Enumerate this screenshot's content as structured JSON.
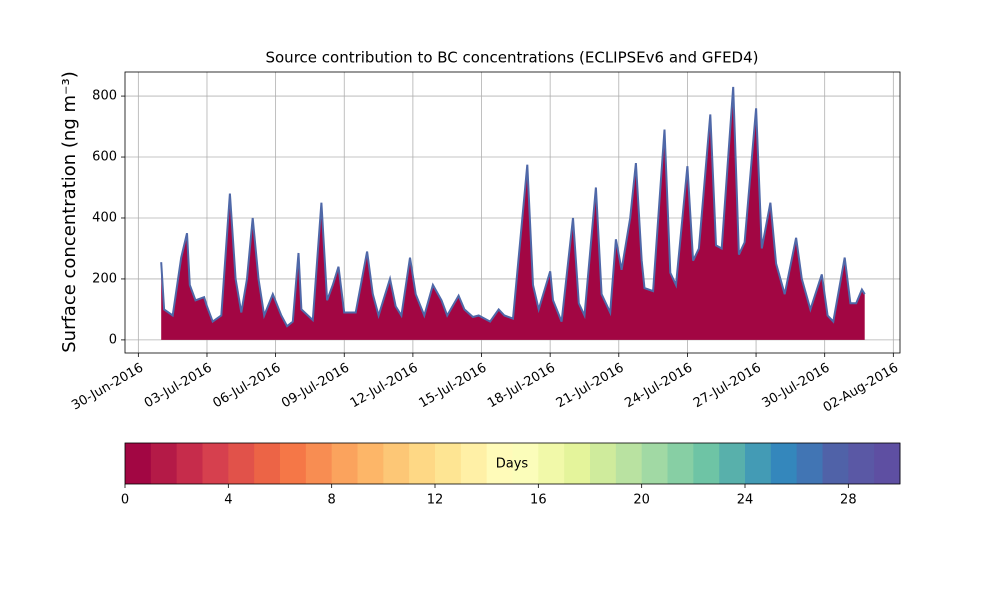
{
  "chart_data": {
    "type": "area",
    "title": "Source contribution to BC concentrations (ECLIPSEv6 and GFED4)",
    "ylabel": "Surface concentration (ng m⁻³)",
    "x": [
      "2016-07-01T00:00",
      "2016-07-01T03:00",
      "2016-07-01T12:00",
      "2016-07-01T21:00",
      "2016-07-02T03:00",
      "2016-07-02T06:00",
      "2016-07-02T12:00",
      "2016-07-02T21:00",
      "2016-07-03T00:00",
      "2016-07-03T06:00",
      "2016-07-03T15:00",
      "2016-07-04T00:00",
      "2016-07-04T06:00",
      "2016-07-04T12:00",
      "2016-07-04T18:00",
      "2016-07-05T00:00",
      "2016-07-05T06:00",
      "2016-07-05T12:00",
      "2016-07-05T21:00",
      "2016-07-06T06:00",
      "2016-07-06T12:00",
      "2016-07-06T18:00",
      "2016-07-07T00:00",
      "2016-07-07T03:00",
      "2016-07-07T15:00",
      "2016-07-08T00:00",
      "2016-07-08T06:00",
      "2016-07-08T12:00",
      "2016-07-08T18:00",
      "2016-07-09T00:00",
      "2016-07-09T12:00",
      "2016-07-10T00:00",
      "2016-07-10T06:00",
      "2016-07-10T12:00",
      "2016-07-11T00:00",
      "2016-07-11T06:00",
      "2016-07-11T12:00",
      "2016-07-11T21:00",
      "2016-07-12T03:00",
      "2016-07-12T12:00",
      "2016-07-12T21:00",
      "2016-07-13T06:00",
      "2016-07-13T12:00",
      "2016-07-14T00:00",
      "2016-07-14T06:00",
      "2016-07-14T15:00",
      "2016-07-14T21:00",
      "2016-07-15T09:00",
      "2016-07-15T18:00",
      "2016-07-16T00:00",
      "2016-07-16T09:00",
      "2016-07-17T00:00",
      "2016-07-17T06:00",
      "2016-07-17T12:00",
      "2016-07-18T00:00",
      "2016-07-18T03:00",
      "2016-07-18T12:00",
      "2016-07-19T00:00",
      "2016-07-19T06:00",
      "2016-07-19T12:00",
      "2016-07-20T00:00",
      "2016-07-20T06:00",
      "2016-07-20T15:00",
      "2016-07-20T21:00",
      "2016-07-21T03:00",
      "2016-07-21T12:00",
      "2016-07-21T18:00",
      "2016-07-22T00:00",
      "2016-07-22T03:00",
      "2016-07-22T12:00",
      "2016-07-23T00:00",
      "2016-07-23T06:00",
      "2016-07-23T12:00",
      "2016-07-24T00:00",
      "2016-07-24T06:00",
      "2016-07-24T12:00",
      "2016-07-25T00:00",
      "2016-07-25T06:00",
      "2016-07-25T12:00",
      "2016-07-26T00:00",
      "2016-07-26T06:00",
      "2016-07-26T12:00",
      "2016-07-27T00:00",
      "2016-07-27T06:00",
      "2016-07-27T15:00",
      "2016-07-27T21:00",
      "2016-07-28T06:00",
      "2016-07-28T18:00",
      "2016-07-29T00:00",
      "2016-07-29T09:00",
      "2016-07-29T21:00",
      "2016-07-30T03:00",
      "2016-07-30T09:00",
      "2016-07-30T21:00",
      "2016-07-31T03:00",
      "2016-07-31T09:00",
      "2016-07-31T15:00",
      "2016-07-31T18:00"
    ],
    "values": [
      255,
      100,
      80,
      270,
      350,
      180,
      130,
      140,
      110,
      60,
      80,
      480,
      200,
      90,
      200,
      400,
      200,
      80,
      150,
      80,
      45,
      60,
      285,
      100,
      65,
      450,
      130,
      180,
      240,
      90,
      90,
      290,
      150,
      80,
      200,
      110,
      80,
      270,
      150,
      80,
      180,
      130,
      80,
      145,
      100,
      75,
      80,
      60,
      100,
      80,
      70,
      575,
      180,
      100,
      225,
      130,
      60,
      400,
      120,
      80,
      500,
      150,
      90,
      330,
      230,
      400,
      580,
      260,
      170,
      160,
      690,
      220,
      180,
      570,
      260,
      300,
      740,
      310,
      300,
      830,
      280,
      320,
      760,
      300,
      450,
      250,
      150,
      335,
      200,
      100,
      215,
      80,
      60,
      270,
      120,
      120,
      165,
      150
    ],
    "fill_color": "#a20643",
    "line_color": "#4f68a8",
    "xlim": [
      "2016-06-29T10:00",
      "2016-08-02T07:00"
    ],
    "xticks": [
      {
        "value": "2016-06-30T00:00",
        "label": "30-Jun-2016"
      },
      {
        "value": "2016-07-03T00:00",
        "label": "03-Jul-2016"
      },
      {
        "value": "2016-07-06T00:00",
        "label": "06-Jul-2016"
      },
      {
        "value": "2016-07-09T00:00",
        "label": "09-Jul-2016"
      },
      {
        "value": "2016-07-12T00:00",
        "label": "12-Jul-2016"
      },
      {
        "value": "2016-07-15T00:00",
        "label": "15-Jul-2016"
      },
      {
        "value": "2016-07-18T00:00",
        "label": "18-Jul-2016"
      },
      {
        "value": "2016-07-21T00:00",
        "label": "21-Jul-2016"
      },
      {
        "value": "2016-07-24T00:00",
        "label": "24-Jul-2016"
      },
      {
        "value": "2016-07-27T00:00",
        "label": "27-Jul-2016"
      },
      {
        "value": "2016-07-30T00:00",
        "label": "30-Jul-2016"
      },
      {
        "value": "2016-08-02T00:00",
        "label": "02-Aug-2016"
      }
    ],
    "ylim": [
      -43,
      879
    ],
    "yticks": [
      0,
      200,
      400,
      600,
      800
    ],
    "grid": true,
    "colorbar": {
      "label": "Days",
      "lim": [
        0,
        30
      ],
      "ticks": [
        0,
        4,
        8,
        12,
        16,
        20,
        24,
        28
      ],
      "colors": [
        "#a20643",
        "#b41a47",
        "#c62c4b",
        "#d6404e",
        "#e1524a",
        "#ec6446",
        "#f57747",
        "#f88d52",
        "#fba35d",
        "#fdb668",
        "#fdc776",
        "#fed885",
        "#fee593",
        "#fff0a6",
        "#fffbb9",
        "#fbfdba",
        "#f1f9a9",
        "#e4f49b",
        "#cfeb9c",
        "#b9e2a1",
        "#a1d9a4",
        "#87cfa4",
        "#6ec4a5",
        "#58b0ab",
        "#439bb5",
        "#3487bc",
        "#4175b4",
        "#5062a8",
        "#5a58a5",
        "#5e4fa2"
      ]
    }
  }
}
